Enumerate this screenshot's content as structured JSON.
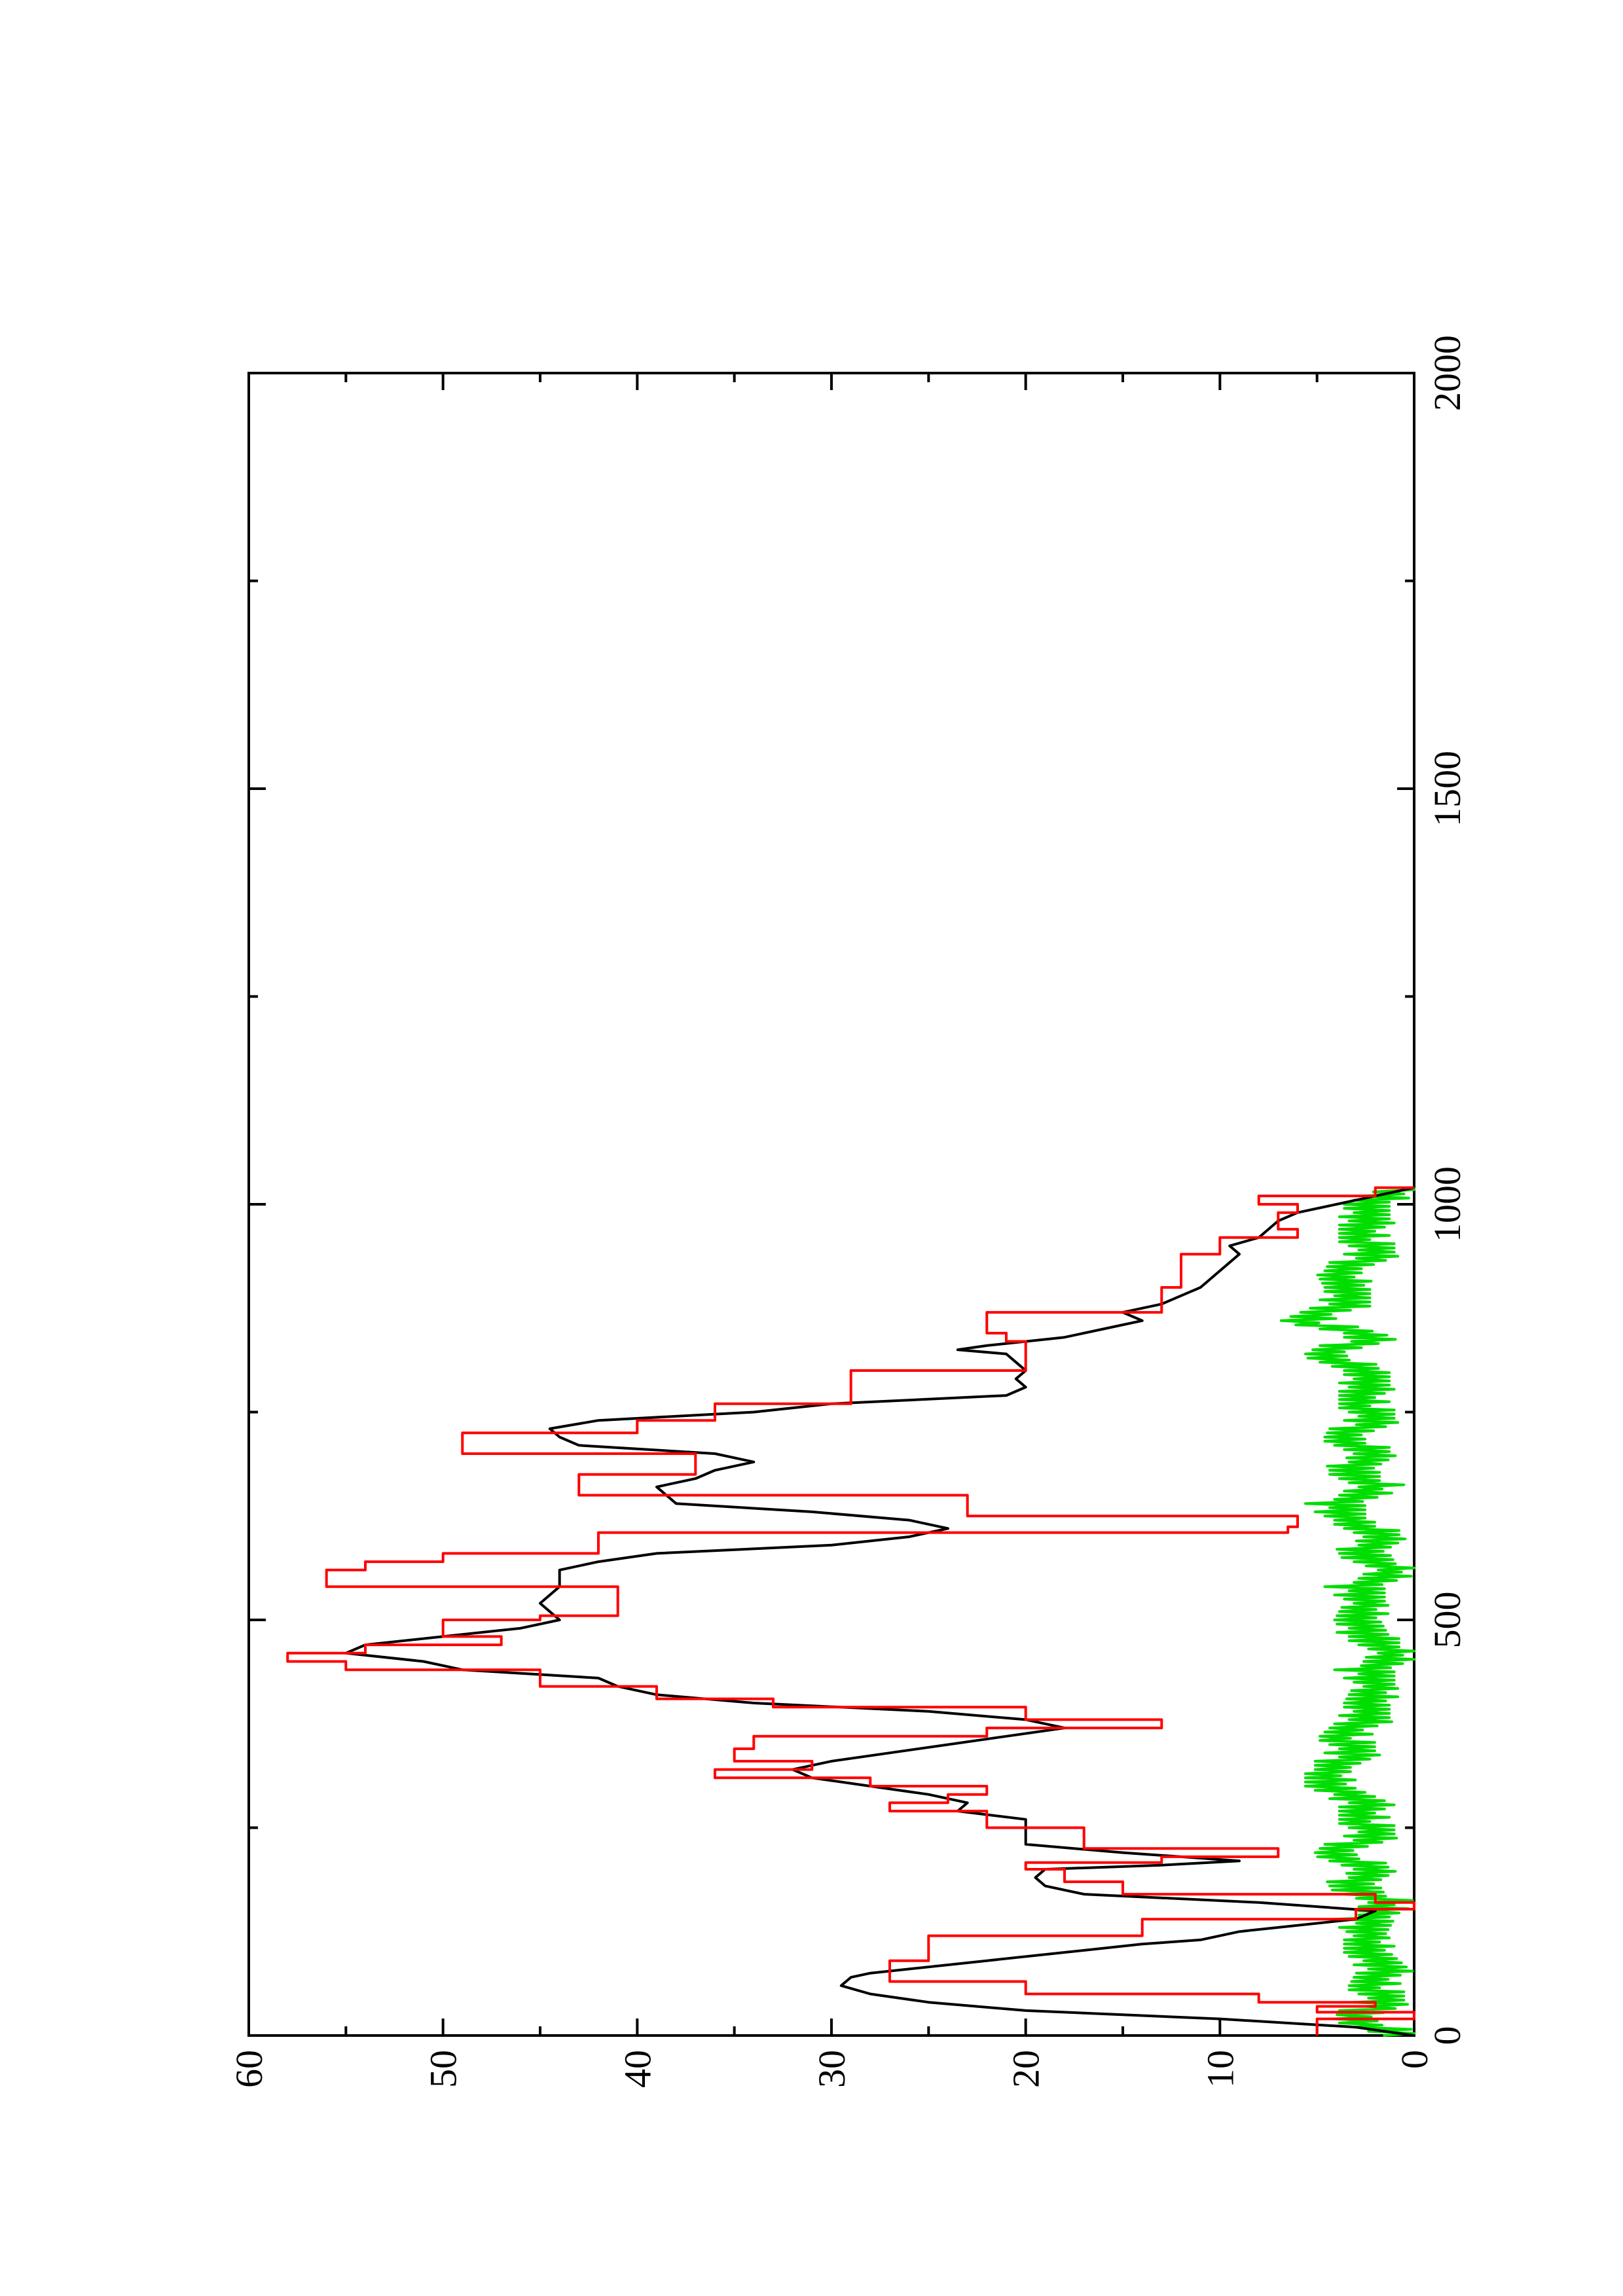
{
  "chart_data": {
    "type": "line",
    "orientation": "rotated-90-ccw",
    "title": "",
    "xlabel": "",
    "ylabel": "",
    "xlim": [
      0,
      2000
    ],
    "ylim": [
      0,
      60
    ],
    "x_ticks": [
      0,
      500,
      1000,
      1500,
      2000
    ],
    "x_tick_labels": [
      "0",
      "500",
      "1000",
      "1500",
      "2000"
    ],
    "y_ticks": [
      0,
      10,
      20,
      30,
      40,
      50,
      60
    ],
    "y_tick_labels": [
      "0",
      "10",
      "20",
      "30",
      "40",
      "50",
      "60"
    ],
    "grid": false,
    "legend": "none",
    "series": [
      {
        "color": "#000000",
        "style": "line",
        "x": [
          0,
          10,
          20,
          30,
          40,
          50,
          60,
          70,
          75,
          80,
          90,
          100,
          110,
          115,
          125,
          130,
          140,
          150,
          160,
          170,
          180,
          190,
          200,
          205,
          210,
          215,
          220,
          230,
          250,
          260,
          270,
          280,
          290,
          300,
          310,
          320,
          330,
          340,
          360,
          370,
          380,
          390,
          400,
          410,
          420,
          430,
          440,
          450,
          460,
          470,
          480,
          490,
          500,
          510,
          520,
          540,
          560,
          570,
          580,
          590,
          600,
          610,
          620,
          630,
          640,
          650,
          660,
          670,
          680,
          690,
          700,
          710,
          720,
          730,
          740,
          750,
          760,
          770,
          780,
          790,
          800,
          810,
          820,
          825,
          830,
          840,
          850,
          860,
          870,
          880,
          890,
          900,
          920,
          940,
          950,
          960,
          970,
          980,
          990,
          1000,
          1010,
          1020
        ],
        "y": [
          0,
          3,
          10,
          20,
          25,
          28,
          29.5,
          29,
          28,
          26,
          22,
          18,
          14,
          11,
          9,
          7,
          3,
          2,
          8,
          17,
          19,
          19.5,
          19,
          13,
          9,
          12,
          15,
          20,
          20,
          20,
          23.5,
          23,
          25,
          28,
          31,
          32,
          30,
          27,
          21,
          18,
          20,
          25,
          34,
          39,
          41,
          42,
          49,
          51,
          55,
          54,
          50,
          46,
          44,
          44.5,
          45,
          44,
          44,
          42,
          39,
          30,
          26,
          24,
          26,
          31,
          38,
          38.5,
          39,
          37,
          36,
          34,
          36,
          43,
          44,
          44.5,
          42,
          34,
          30,
          21,
          20,
          20.5,
          20,
          20.5,
          21,
          23.5,
          22,
          18,
          16,
          14,
          15,
          13,
          12,
          11,
          10,
          9,
          9.5,
          8,
          7.5,
          7,
          6,
          4,
          2,
          0
        ]
      },
      {
        "color": "#ff0000",
        "style": "step",
        "x": [
          0,
          20,
          28,
          35,
          40,
          50,
          65,
          90,
          120,
          140,
          152,
          160,
          170,
          185,
          200,
          208,
          215,
          225,
          250,
          270,
          280,
          290,
          300,
          310,
          320,
          330,
          345,
          360,
          370,
          380,
          395,
          405,
          420,
          440,
          450,
          460,
          470,
          480,
          500,
          505,
          520,
          540,
          560,
          570,
          580,
          605,
          612,
          625,
          650,
          675,
          700,
          725,
          740,
          760,
          800,
          820,
          835,
          845,
          870,
          900,
          940,
          960,
          970,
          990,
          1000,
          1010,
          1020
        ],
        "y": [
          5,
          0,
          5,
          2,
          8,
          20,
          27,
          25,
          14,
          3,
          0,
          2,
          15,
          18,
          20,
          13,
          7,
          17,
          22,
          27,
          24,
          22,
          28,
          36,
          31,
          35,
          34,
          22,
          13,
          20,
          33,
          39,
          45,
          55,
          58,
          54,
          47,
          50,
          45,
          41,
          41,
          56,
          54,
          50,
          42,
          6.5,
          6,
          23,
          43,
          37,
          49,
          40,
          36,
          29,
          20,
          20,
          21,
          22,
          13,
          12,
          10,
          6,
          7,
          6,
          8,
          2,
          0
        ]
      },
      {
        "color": "#00dd00",
        "style": "noise",
        "x": [
          0,
          20,
          40,
          60,
          80,
          100,
          120,
          140,
          160,
          180,
          200,
          220,
          240,
          260,
          280,
          300,
          320,
          340,
          360,
          380,
          400,
          420,
          440,
          460,
          480,
          500,
          520,
          540,
          560,
          580,
          600,
          620,
          640,
          660,
          680,
          700,
          720,
          740,
          760,
          780,
          800,
          820,
          840,
          860,
          880,
          900,
          920,
          940,
          960,
          980,
          1000,
          1020
        ],
        "y": [
          1,
          3,
          1.5,
          2.5,
          1,
          3,
          2,
          2.5,
          1.5,
          3,
          2.5,
          4,
          2,
          3,
          2,
          5,
          4,
          3,
          4,
          2,
          3,
          1.5,
          2.5,
          1,
          2,
          3.5,
          2,
          3,
          1,
          2.5,
          2,
          3,
          4,
          2,
          3,
          2.5,
          3.5,
          2,
          3,
          2,
          3,
          4.5,
          2,
          6,
          3,
          4,
          3.5,
          2,
          3,
          2,
          3,
          0
        ]
      }
    ]
  }
}
